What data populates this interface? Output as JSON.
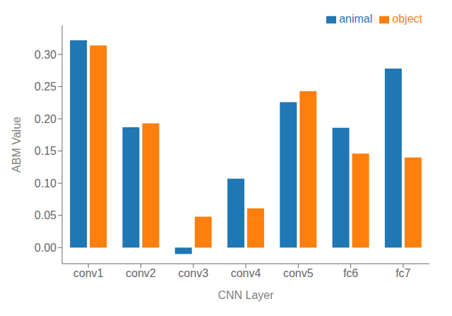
{
  "chart_data": {
    "type": "bar",
    "xlabel": "CNN Layer",
    "ylabel": "ABM Value",
    "categories": [
      "conv1",
      "conv2",
      "conv3",
      "conv4",
      "conv5",
      "fc6",
      "fc7"
    ],
    "series": [
      {
        "name": "animal",
        "color": "#1f77b4",
        "values": [
          0.322,
          0.187,
          -0.01,
          0.107,
          0.226,
          0.186,
          0.278
        ]
      },
      {
        "name": "object",
        "color": "#ff7f0e",
        "values": [
          0.314,
          0.193,
          0.048,
          0.061,
          0.243,
          0.146,
          0.14
        ]
      }
    ],
    "ylim": [
      -0.025,
      0.345
    ],
    "yticks": [
      {
        "value": 0,
        "label": "0.00"
      },
      0.05,
      {
        "value": 0.1,
        "label": "0.10"
      },
      0.15,
      {
        "value": 0.2,
        "label": "0.20"
      },
      0.25,
      {
        "value": 0.3,
        "label": "0.30"
      }
    ],
    "grid": false,
    "legend": "upper right"
  }
}
